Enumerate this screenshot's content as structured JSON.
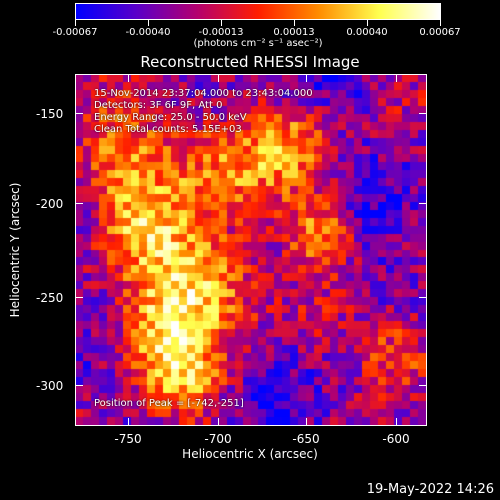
{
  "colorbar": {
    "tick_labels": [
      "-0.00067",
      "-0.00040",
      "-0.00013",
      "0.00013",
      "0.00040",
      "0.00067"
    ],
    "unit": "(photons cm⁻² s⁻¹ asec⁻²)",
    "colors": [
      "#0000ff",
      "#5a00c8",
      "#b4006e",
      "#ff1e00",
      "#ff8c00",
      "#ffff50",
      "#ffffff"
    ]
  },
  "plot": {
    "title": "Reconstructed RHESSI Image",
    "info_lines": [
      "15-Nov-2014 23:37:04.000 to 23:43:04.000",
      "Detectors: 3F 6F 9F, Att 0",
      "Energy Range: 25.0 - 50.0 keV",
      "Clean     Total counts: 5.15E+03"
    ],
    "peak_text": "Position of Peak = [-742,-251]"
  },
  "axes": {
    "xlabel": "Heliocentric X (arcsec)",
    "ylabel": "Heliocentric Y (arcsec)",
    "xticks": [
      "-750",
      "-700",
      "-650",
      "-600"
    ],
    "yticks": [
      "-150",
      "-200",
      "-250",
      "-300"
    ]
  },
  "footer": {
    "timestamp": "19-May-2022 14:26"
  }
}
